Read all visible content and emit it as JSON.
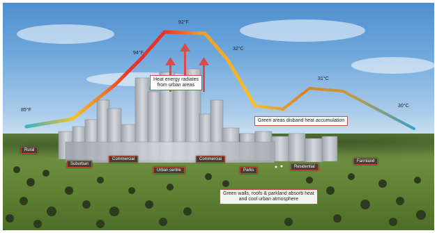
{
  "temps": {
    "rural": "85°F",
    "suburb": "94°F",
    "peak": "92°F",
    "downtown_c": "32°C",
    "park": "31°C",
    "farm": "30°C"
  },
  "notes": {
    "heat": [
      "Heat energy radiates",
      "from urban areas"
    ],
    "green": "Green areas disband heat accumulation",
    "walls": [
      "Green walls, roofs & parkland absorb heat",
      "and cool urban atmosphere"
    ]
  },
  "zones": {
    "rural": "Rural",
    "suburban": "Suburban",
    "commercial1": "Commercial",
    "urban_centre": "Urban centre",
    "commercial2": "Commercial",
    "parks": "Parks",
    "residential": "Residential",
    "farmland": "Farmland"
  },
  "colors": {
    "curve_cool": "#36b4c8",
    "curve_warm": "#f4c12a",
    "curve_hot": "#e5322c",
    "arrow": "#d94a4a"
  }
}
